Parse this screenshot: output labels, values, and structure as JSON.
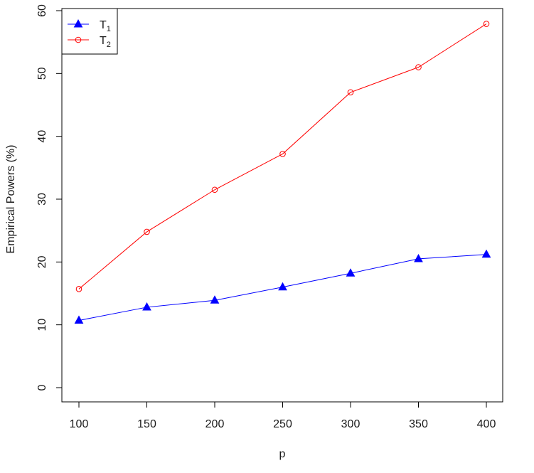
{
  "chart_data": {
    "type": "line",
    "title": "",
    "xlabel": "p",
    "ylabel": "Empirical Powers (%)",
    "x": [
      100,
      150,
      200,
      250,
      300,
      350,
      400
    ],
    "xlim": [
      100,
      400
    ],
    "ylim": [
      0,
      60
    ],
    "xticks": [
      100,
      150,
      200,
      250,
      300,
      350,
      400
    ],
    "yticks": [
      0,
      10,
      20,
      30,
      40,
      50,
      60
    ],
    "grid": false,
    "legend_position": "top-left",
    "series": [
      {
        "name": "T",
        "subscript": "1",
        "color": "#0000ff",
        "marker": "filled-triangle",
        "values": [
          10.7,
          12.8,
          13.9,
          16.0,
          18.2,
          20.5,
          21.2
        ]
      },
      {
        "name": "T",
        "subscript": "2",
        "color": "#ff0000",
        "marker": "open-circle",
        "values": [
          15.7,
          24.8,
          31.5,
          37.2,
          47.0,
          51.0,
          57.9
        ]
      }
    ]
  }
}
